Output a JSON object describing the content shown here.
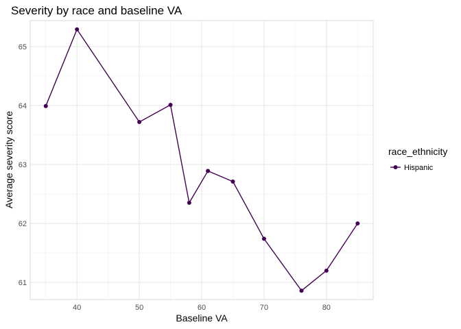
{
  "chart_data": {
    "type": "line",
    "title": "Severity by race and baseline VA",
    "xlabel": "Baseline VA",
    "ylabel": "Average severity score",
    "xlim": [
      32.5,
      87.5
    ],
    "ylim": [
      60.71,
      65.44
    ],
    "x_ticks": [
      40,
      50,
      60,
      70,
      80
    ],
    "y_ticks": [
      61,
      62,
      63,
      64,
      65
    ],
    "grid": true,
    "legend_position": "right",
    "legend_title": "race_ethnicity",
    "series": [
      {
        "name": "Hispanic",
        "color": "#440154",
        "x": [
          35,
          40,
          50,
          55,
          58,
          61,
          65,
          70,
          76,
          80,
          85
        ],
        "y": [
          63.99,
          65.29,
          63.72,
          64.01,
          62.35,
          62.89,
          62.71,
          61.74,
          60.86,
          61.2,
          62.0
        ]
      }
    ]
  }
}
